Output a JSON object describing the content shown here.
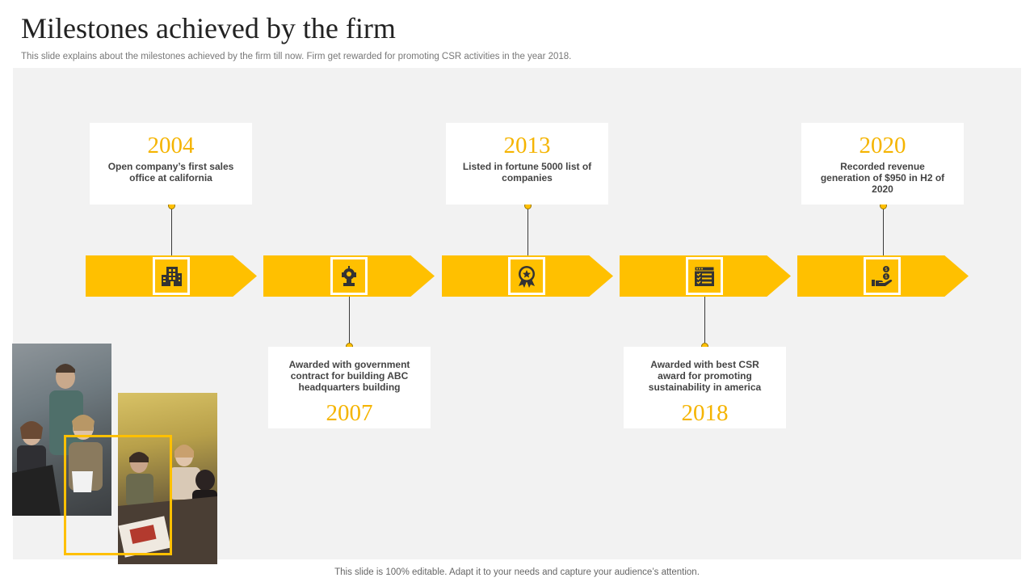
{
  "header": {
    "title": "Milestones achieved by the firm",
    "subtitle": "This slide explains about the milestones achieved by the firm till now. Firm get rewarded for promoting CSR activities in the year 2018."
  },
  "footer": {
    "text": "This slide is 100% editable. Adapt it to your needs and capture your audience’s attention."
  },
  "colors": {
    "accent": "#ffc000",
    "year": "#f5b400",
    "panel": "#f2f2f2",
    "card": "#ffffff"
  },
  "milestones": [
    {
      "year": "2004",
      "description": "Open company’s first sales office at california",
      "position": "top",
      "icon": "office-building-icon"
    },
    {
      "year": "2007",
      "description": "Awarded with government contract for building ABC headquarters building",
      "position": "bottom",
      "icon": "trophy-icon"
    },
    {
      "year": "2013",
      "description": "Listed in fortune 5000 list of companies",
      "position": "top",
      "icon": "award-badge-icon"
    },
    {
      "year": "2018",
      "description": "Awarded with best CSR award for promoting sustainability in america",
      "position": "bottom",
      "icon": "checklist-icon"
    },
    {
      "year": "2020",
      "description": "Recorded revenue generation of $950 in H2 of 2020",
      "position": "top",
      "icon": "money-hand-icon"
    }
  ]
}
